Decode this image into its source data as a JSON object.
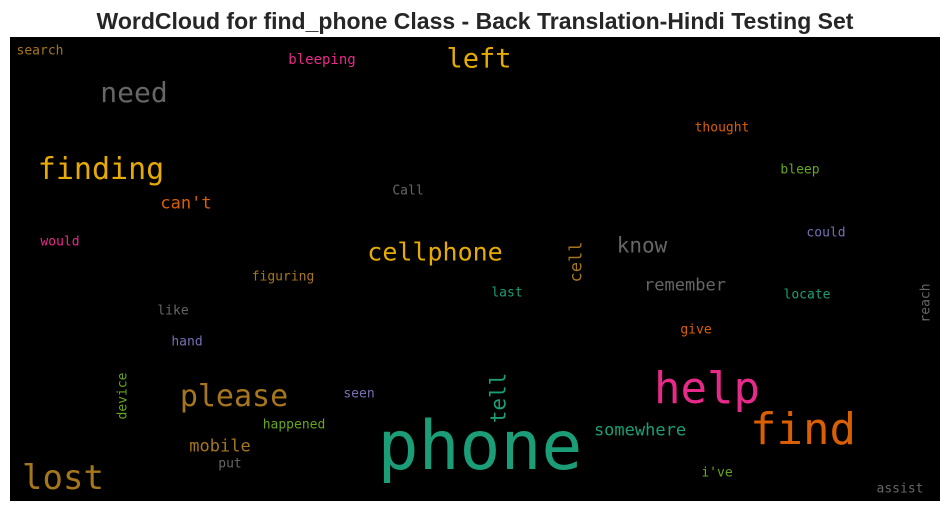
{
  "chart_data": {
    "type": "wordcloud",
    "title": "WordCloud for find_phone Class - Back Translation-Hindi Testing Set",
    "words": [
      {
        "text": "phone",
        "color": "#1b9e77"
      },
      {
        "text": "find",
        "color": "#d95f02"
      },
      {
        "text": "help",
        "color": "#e7298a"
      },
      {
        "text": "lost",
        "color": "#a6761d"
      },
      {
        "text": "please",
        "color": "#a6761d"
      },
      {
        "text": "finding",
        "color": "#e6ab02"
      },
      {
        "text": "cellphone",
        "color": "#e6ab02"
      },
      {
        "text": "need",
        "color": "#666666"
      },
      {
        "text": "left",
        "color": "#e6ab02"
      },
      {
        "text": "know",
        "color": "#666666"
      },
      {
        "text": "tell",
        "color": "#1b9e77"
      },
      {
        "text": "somewhere",
        "color": "#1b9e77"
      },
      {
        "text": "remember",
        "color": "#666666"
      },
      {
        "text": "can't",
        "color": "#d95f02"
      },
      {
        "text": "mobile",
        "color": "#a6761d"
      },
      {
        "text": "cell",
        "color": "#a6761d"
      },
      {
        "text": "thought",
        "color": "#d95f02"
      },
      {
        "text": "bleeping",
        "color": "#e7298a"
      },
      {
        "text": "search",
        "color": "#a6761d"
      },
      {
        "text": "bleep",
        "color": "#66a61e"
      },
      {
        "text": "Call",
        "color": "#666666"
      },
      {
        "text": "could",
        "color": "#7570b3"
      },
      {
        "text": "would",
        "color": "#e7298a"
      },
      {
        "text": "figuring",
        "color": "#a6761d"
      },
      {
        "text": "last",
        "color": "#1b9e77"
      },
      {
        "text": "locate",
        "color": "#1b9e77"
      },
      {
        "text": "reach",
        "color": "#666666"
      },
      {
        "text": "like",
        "color": "#666666"
      },
      {
        "text": "give",
        "color": "#d95f02"
      },
      {
        "text": "hand",
        "color": "#7570b3"
      },
      {
        "text": "device",
        "color": "#66a61e"
      },
      {
        "text": "seen",
        "color": "#7570b3"
      },
      {
        "text": "happened",
        "color": "#66a61e"
      },
      {
        "text": "put",
        "color": "#666666"
      },
      {
        "text": "i've",
        "color": "#66a61e"
      },
      {
        "text": "assist",
        "color": "#666666"
      }
    ]
  }
}
